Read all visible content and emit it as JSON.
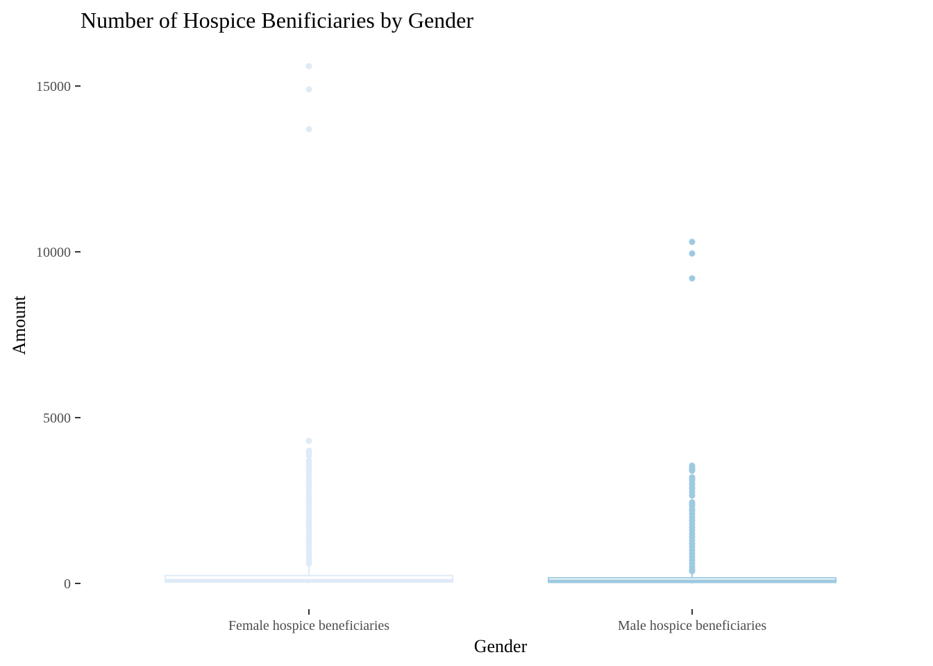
{
  "chart_data": {
    "type": "box",
    "title": "Number of Hospice Benificiaries by Gender",
    "xlabel": "Gender",
    "ylabel": "Amount",
    "ylim": [
      -700,
      16000
    ],
    "yticks": [
      0,
      5000,
      10000,
      15000
    ],
    "grid": false,
    "legend": "none",
    "categories": [
      "Female hospice beneficiaries",
      "Male hospice beneficiaries"
    ],
    "series": [
      {
        "category": "Female hospice beneficiaries",
        "color": "#deebf7",
        "whisker_low": 0,
        "q1": 40,
        "median": 95,
        "q3": 240,
        "whisker_high": 520,
        "outliers": [
          15600,
          14900,
          13700,
          4300,
          4000,
          3950,
          3850,
          3700,
          3600,
          3500,
          3400,
          3300,
          3200,
          3100,
          3000,
          2900,
          2800,
          2700,
          2600,
          2500,
          2400,
          2300,
          2200,
          2100,
          2000,
          1900,
          1800,
          1700,
          1600,
          1500,
          1400,
          1300,
          1200,
          1100,
          1000,
          900,
          800,
          700,
          600
        ]
      },
      {
        "category": "Male hospice beneficiaries",
        "color": "#9ecae1",
        "whisker_low": 0,
        "q1": 30,
        "median": 75,
        "q3": 170,
        "whisker_high": 330,
        "outliers": [
          10300,
          9950,
          9200,
          3550,
          3500,
          3450,
          3400,
          3200,
          3150,
          3100,
          3000,
          2900,
          2850,
          2750,
          2650,
          2450,
          2400,
          2350,
          2250,
          2200,
          2100,
          2000,
          1900,
          1800,
          1700,
          1600,
          1500,
          1400,
          1300,
          1200,
          1100,
          1000,
          900,
          800,
          700,
          600,
          500,
          420,
          370
        ]
      }
    ]
  }
}
